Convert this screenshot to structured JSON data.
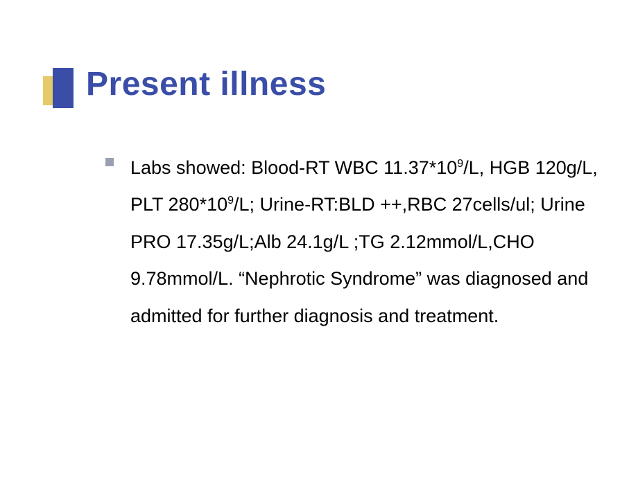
{
  "slide": {
    "title": "Present illness",
    "title_color": "#3a4ea8",
    "title_fontsize": 48,
    "decoration": {
      "yellow": "#e6c968",
      "blue": "#3a4ea8"
    },
    "bullet_marker_color": "#9aa0b4",
    "body_fontsize": 27,
    "body_color": "#000000",
    "background_color": "#ffffff",
    "bullets": [
      {
        "segments": [
          {
            "t": "Labs showed: Blood-RT WBC 11.37*10"
          },
          {
            "t": "9",
            "sup": true
          },
          {
            "t": "/L, HGB 120g/L, PLT 280*10"
          },
          {
            "t": "9",
            "sup": true
          },
          {
            "t": "/L; Urine-RT:BLD ++,RBC 27cells/ul; Urine PRO 17.35g/L;Alb 24.1g/L ;TG 2.12mmol/L,CHO 9.78mmol/L. “Nephrotic Syndrome” was diagnosed and admitted for further diagnosis and treatment."
          }
        ]
      }
    ]
  }
}
